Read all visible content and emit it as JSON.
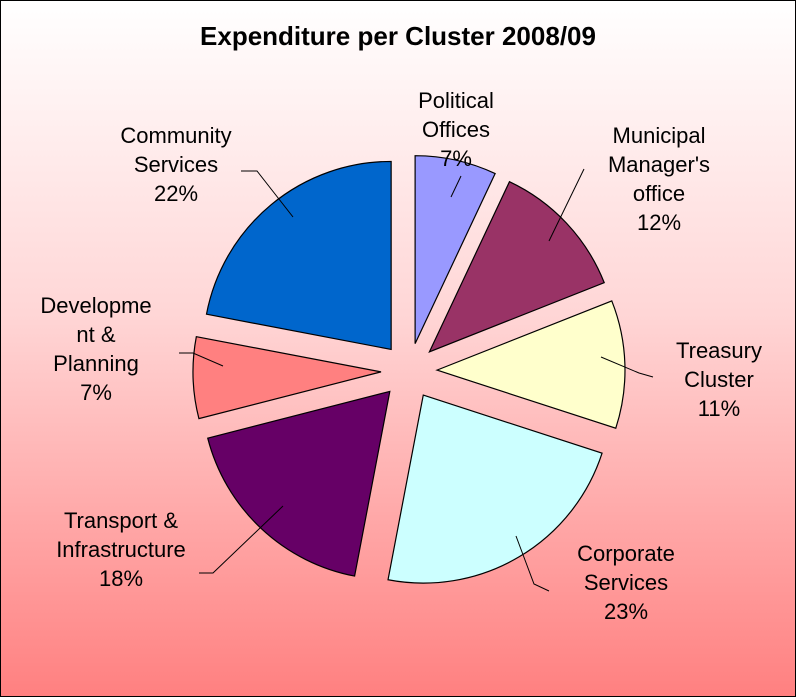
{
  "chart_data": {
    "type": "pie",
    "title": "Expenditure per Cluster 2008/09",
    "categories": [
      "Political Offices",
      "Municipal Manager's office",
      "Treasury Cluster",
      "Corporate Services",
      "Transport & Infrastructure",
      "Development & Planning",
      "Community Services"
    ],
    "values": [
      7,
      12,
      11,
      23,
      18,
      7,
      22
    ],
    "value_labels": [
      "7%",
      "12%",
      "11%",
      "23%",
      "18%",
      "7%",
      "22%"
    ],
    "colors": [
      "#9999ff",
      "#993366",
      "#ffffcc",
      "#ccffff",
      "#660066",
      "#ff8080",
      "#0066cc"
    ]
  }
}
